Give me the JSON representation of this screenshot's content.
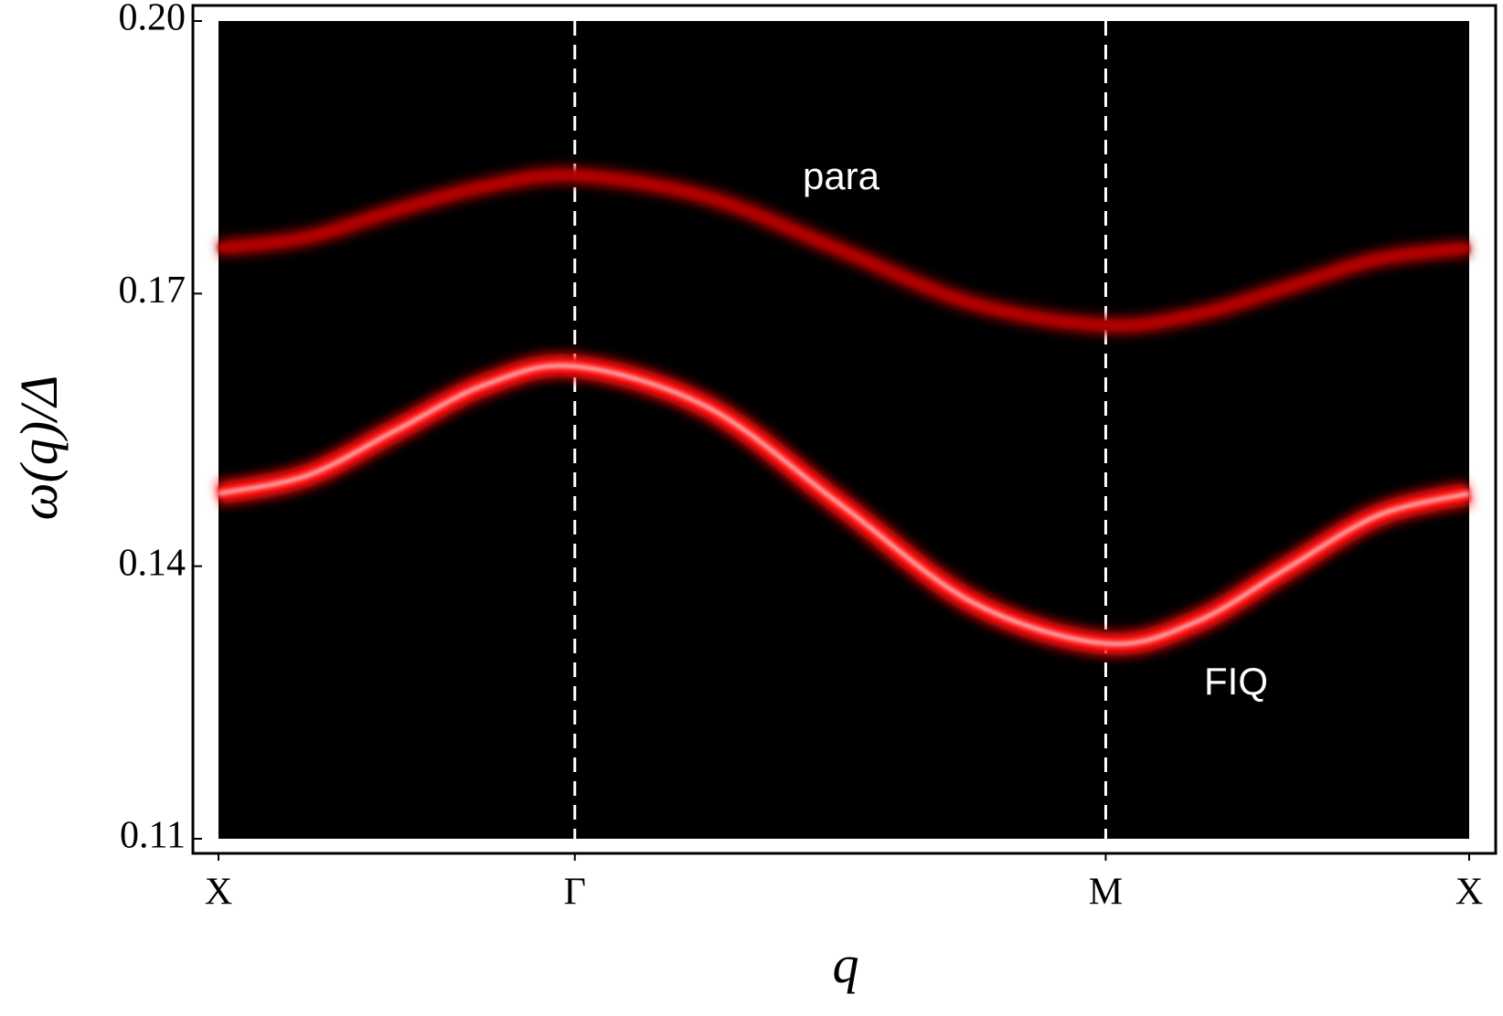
{
  "chart_data": {
    "type": "line",
    "x_label": "q",
    "y_label": "ω(q)/Δ",
    "x": [
      0,
      0.25,
      0.5,
      0.75,
      1,
      1.3725,
      1.745,
      2.1175,
      2.49,
      2.745,
      3.0,
      3.255,
      3.51
    ],
    "series": [
      {
        "name": "para",
        "color": "#b00000",
        "values": [
          0.175,
          0.1762,
          0.1792,
          0.1818,
          0.183,
          0.1806,
          0.1748,
          0.1689,
          0.1665,
          0.1677,
          0.1707,
          0.1738,
          0.175
        ]
      },
      {
        "name": "FIQ",
        "color": "#ff1010",
        "values": [
          0.148,
          0.15,
          0.155,
          0.16,
          0.162,
          0.1575,
          0.1468,
          0.136,
          0.1315,
          0.1339,
          0.1398,
          0.1456,
          0.148
        ]
      }
    ],
    "xlim": [
      0,
      3.51
    ],
    "xticks": [
      {
        "value": 0,
        "label": "X"
      },
      {
        "value": 1,
        "label": "Γ"
      },
      {
        "value": 2.49,
        "label": "M"
      },
      {
        "value": 3.51,
        "label": "X"
      }
    ],
    "ylim": [
      0.11,
      0.2
    ],
    "yticks": [
      0.11,
      0.14,
      0.17,
      {
        "value": 0.2,
        "label": "0.20"
      }
    ],
    "background": "#000000",
    "x_grid_dashed": true
  }
}
